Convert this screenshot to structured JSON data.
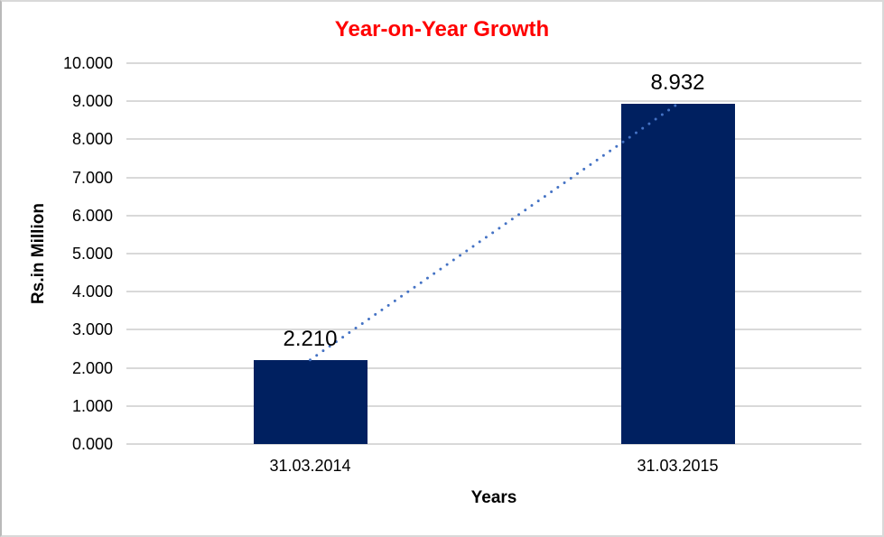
{
  "chart_data": {
    "type": "bar",
    "title": "Year-on-Year Growth",
    "xlabel": "Years",
    "ylabel": "Rs.in Million",
    "categories": [
      "31.03.2014",
      "31.03.2015"
    ],
    "values": [
      2.21,
      8.932
    ],
    "data_labels": [
      "2.210",
      "8.932"
    ],
    "ylim": [
      0,
      10
    ],
    "ytick_step": 1,
    "ytick_labels": [
      "0.000",
      "1.000",
      "2.000",
      "3.000",
      "4.000",
      "5.000",
      "6.000",
      "7.000",
      "8.000",
      "9.000",
      "10.000"
    ],
    "grid": true,
    "legend_position": "none",
    "trendline": {
      "style": "dotted",
      "connects": "top of bar 1 to top of bar 2"
    },
    "colors": {
      "title": "#FF0000",
      "bar": "#002060",
      "trendline": "#4472C4",
      "gridline": "#D9D9D9",
      "text": "#000000",
      "frame": "#D9D9D9"
    }
  }
}
